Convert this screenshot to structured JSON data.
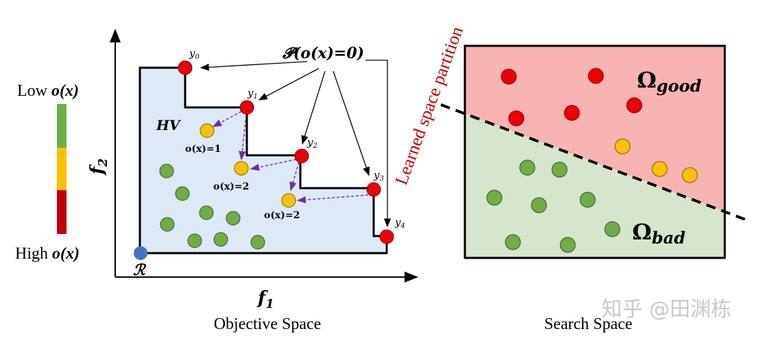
{
  "colors": {
    "red": "#ee0000",
    "yellow": "#ffc000",
    "green": "#70ad47",
    "blue": "#4472c4",
    "hv_fill": "#dde9f6",
    "good_fill": "#f8b3b3",
    "bad_fill": "#d6e6cc",
    "partition_text": "#c00000",
    "purple": "#7030a0"
  },
  "legend": {
    "low": "Low",
    "high": "High",
    "ox": "o(x)"
  },
  "objective": {
    "f1": "f",
    "f1_sub": "1",
    "f2": "f",
    "f2_sub": "2",
    "hv": "HV",
    "ref": "ℛ",
    "pareto_label": "𝓟(o(x)=0)",
    "points": [
      {
        "label": "y",
        "sub": "0"
      },
      {
        "label": "y",
        "sub": "1"
      },
      {
        "label": "y",
        "sub": "2"
      },
      {
        "label": "y",
        "sub": "3"
      },
      {
        "label": "y",
        "sub": "4"
      }
    ],
    "o_labels": [
      "o(x)=1",
      "o(x)=2",
      "o(x)=2"
    ],
    "caption": "Objective Space"
  },
  "partition_label": "Learned space partition",
  "search": {
    "good": "Ω",
    "good_sub": "good",
    "bad": "Ω",
    "bad_sub": "bad",
    "caption": "Search Space"
  },
  "watermark": "知乎 @田渊栋"
}
